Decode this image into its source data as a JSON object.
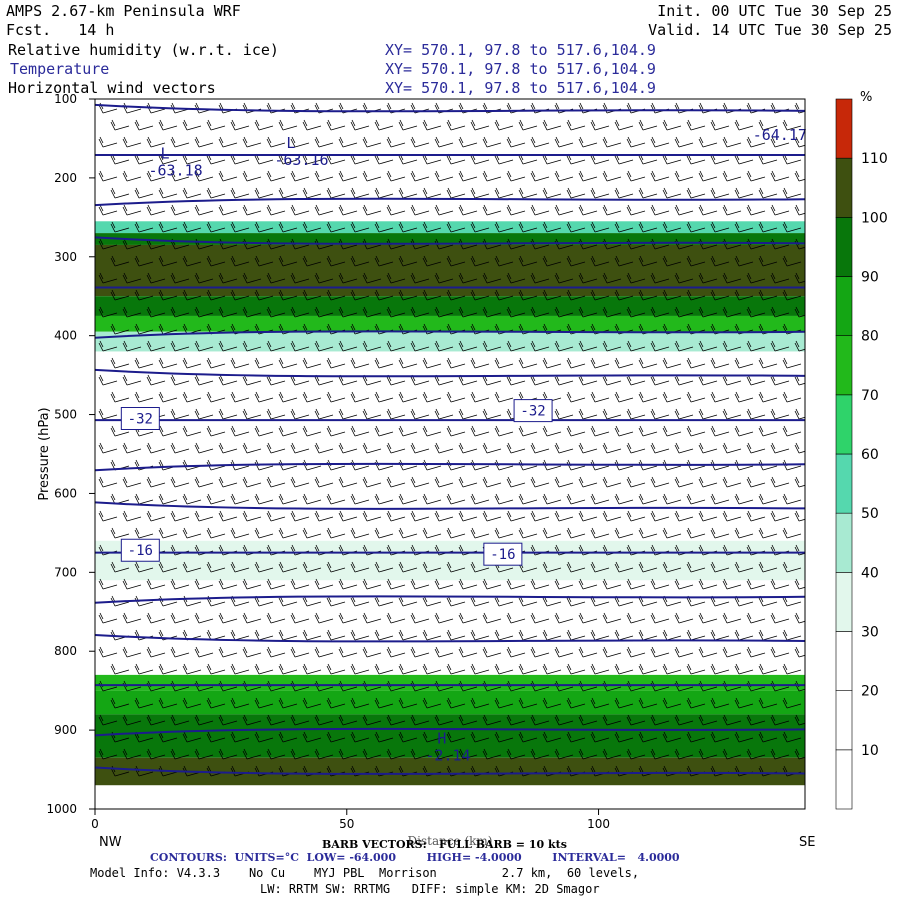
{
  "header": {
    "title_left": "AMPS 2.67-km Peninsula WRF",
    "fcst": "Fcst.   14 h",
    "init": "Init. 00 UTC Tue 30 Sep 25",
    "valid": "Valid. 14 UTC Tue 30 Sep 25",
    "fields": [
      {
        "name": "Relative humidity (w.r.t. ice)",
        "xy": "XY= 570.1, 97.8 to 517.6,104.9"
      },
      {
        "name": "Temperature",
        "xy": "XY= 570.1, 97.8 to 517.6,104.9"
      },
      {
        "name": "Horizontal wind vectors",
        "xy": "XY= 570.1, 97.8 to 517.6,104.9"
      }
    ]
  },
  "chart_data": {
    "type": "heatmap",
    "subtype": "vertical cross-section",
    "ylabel": "Pressure (hPa)",
    "xlabel": "Distance (km)",
    "x_left_label": "NW",
    "x_right_label": "SE",
    "xlim": [
      0,
      141
    ],
    "ylim": [
      1000,
      100
    ],
    "x_ticks": [
      0,
      50,
      100
    ],
    "y_ticks": [
      100,
      200,
      300,
      400,
      500,
      600,
      700,
      800,
      900,
      1000
    ],
    "colorbar": {
      "unit": "%",
      "levels": [
        10,
        20,
        30,
        40,
        50,
        60,
        70,
        80,
        90,
        100,
        110
      ],
      "colors": [
        "#ffffff",
        "#ffffff",
        "#ffffff",
        "#e2f7ec",
        "#a8ead2",
        "#55d8ae",
        "#2fd36a",
        "#22b91b",
        "#14a614",
        "#08770b",
        "#3e5010",
        "#c72809"
      ]
    },
    "rh_bands": [
      {
        "p_top": 255,
        "p_bot": 270,
        "rh": 55
      },
      {
        "p_top": 270,
        "p_bot": 285,
        "rh": 95
      },
      {
        "p_top": 285,
        "p_bot": 350,
        "rh": 105
      },
      {
        "p_top": 350,
        "p_bot": 375,
        "rh": 95
      },
      {
        "p_top": 375,
        "p_bot": 395,
        "rh": 75
      },
      {
        "p_top": 395,
        "p_bot": 420,
        "rh": 45
      },
      {
        "p_top": 660,
        "p_bot": 710,
        "rh": 35
      },
      {
        "p_top": 830,
        "p_bot": 850,
        "rh": 75
      },
      {
        "p_top": 850,
        "p_bot": 880,
        "rh": 85
      },
      {
        "p_top": 880,
        "p_bot": 935,
        "rh": 95
      },
      {
        "p_top": 935,
        "p_bot": 970,
        "rh": 105
      }
    ],
    "temperature_contours": {
      "units": "°C",
      "low": -64.0,
      "high": -4.0,
      "interval": 4.0,
      "labels": [
        {
          "text": "-32",
          "x": 9,
          "p": 505
        },
        {
          "text": "-32",
          "x": 87,
          "p": 495
        },
        {
          "text": "-16",
          "x": 9,
          "p": 672
        },
        {
          "text": "-16",
          "x": 81,
          "p": 677
        }
      ],
      "extrema": [
        {
          "mark": "L",
          "value": "-63.18",
          "x": 13,
          "p": 193
        },
        {
          "mark": "L",
          "value": "-63.16",
          "x": 38,
          "p": 180
        },
        {
          "mark": "",
          "value": "-64.17",
          "x": 133,
          "p": 148
        },
        {
          "mark": "H",
          "value": "-2.14",
          "x": 68,
          "p": 935
        }
      ]
    },
    "wind": {
      "barb_full": "10 kts",
      "vectors_label": "BARB VECTORS:",
      "full_barb_label": "FULL BARB = 10 kts"
    }
  },
  "footer": {
    "contours": "CONTOURS:  UNITS=°C  LOW= -64.000        HIGH= -4.0000        INTERVAL=   4.0000",
    "model_info": "Model Info: V4.3.3    No Cu    MYJ PBL  Morrison         2.7 km,  60 levels,",
    "physics": "LW: RRTM SW: RRTMG   DIFF: simple KM: 2D Smagor"
  },
  "colors": {
    "contour": "#1c1c8c",
    "accent_blue": "#2b2b9a"
  }
}
